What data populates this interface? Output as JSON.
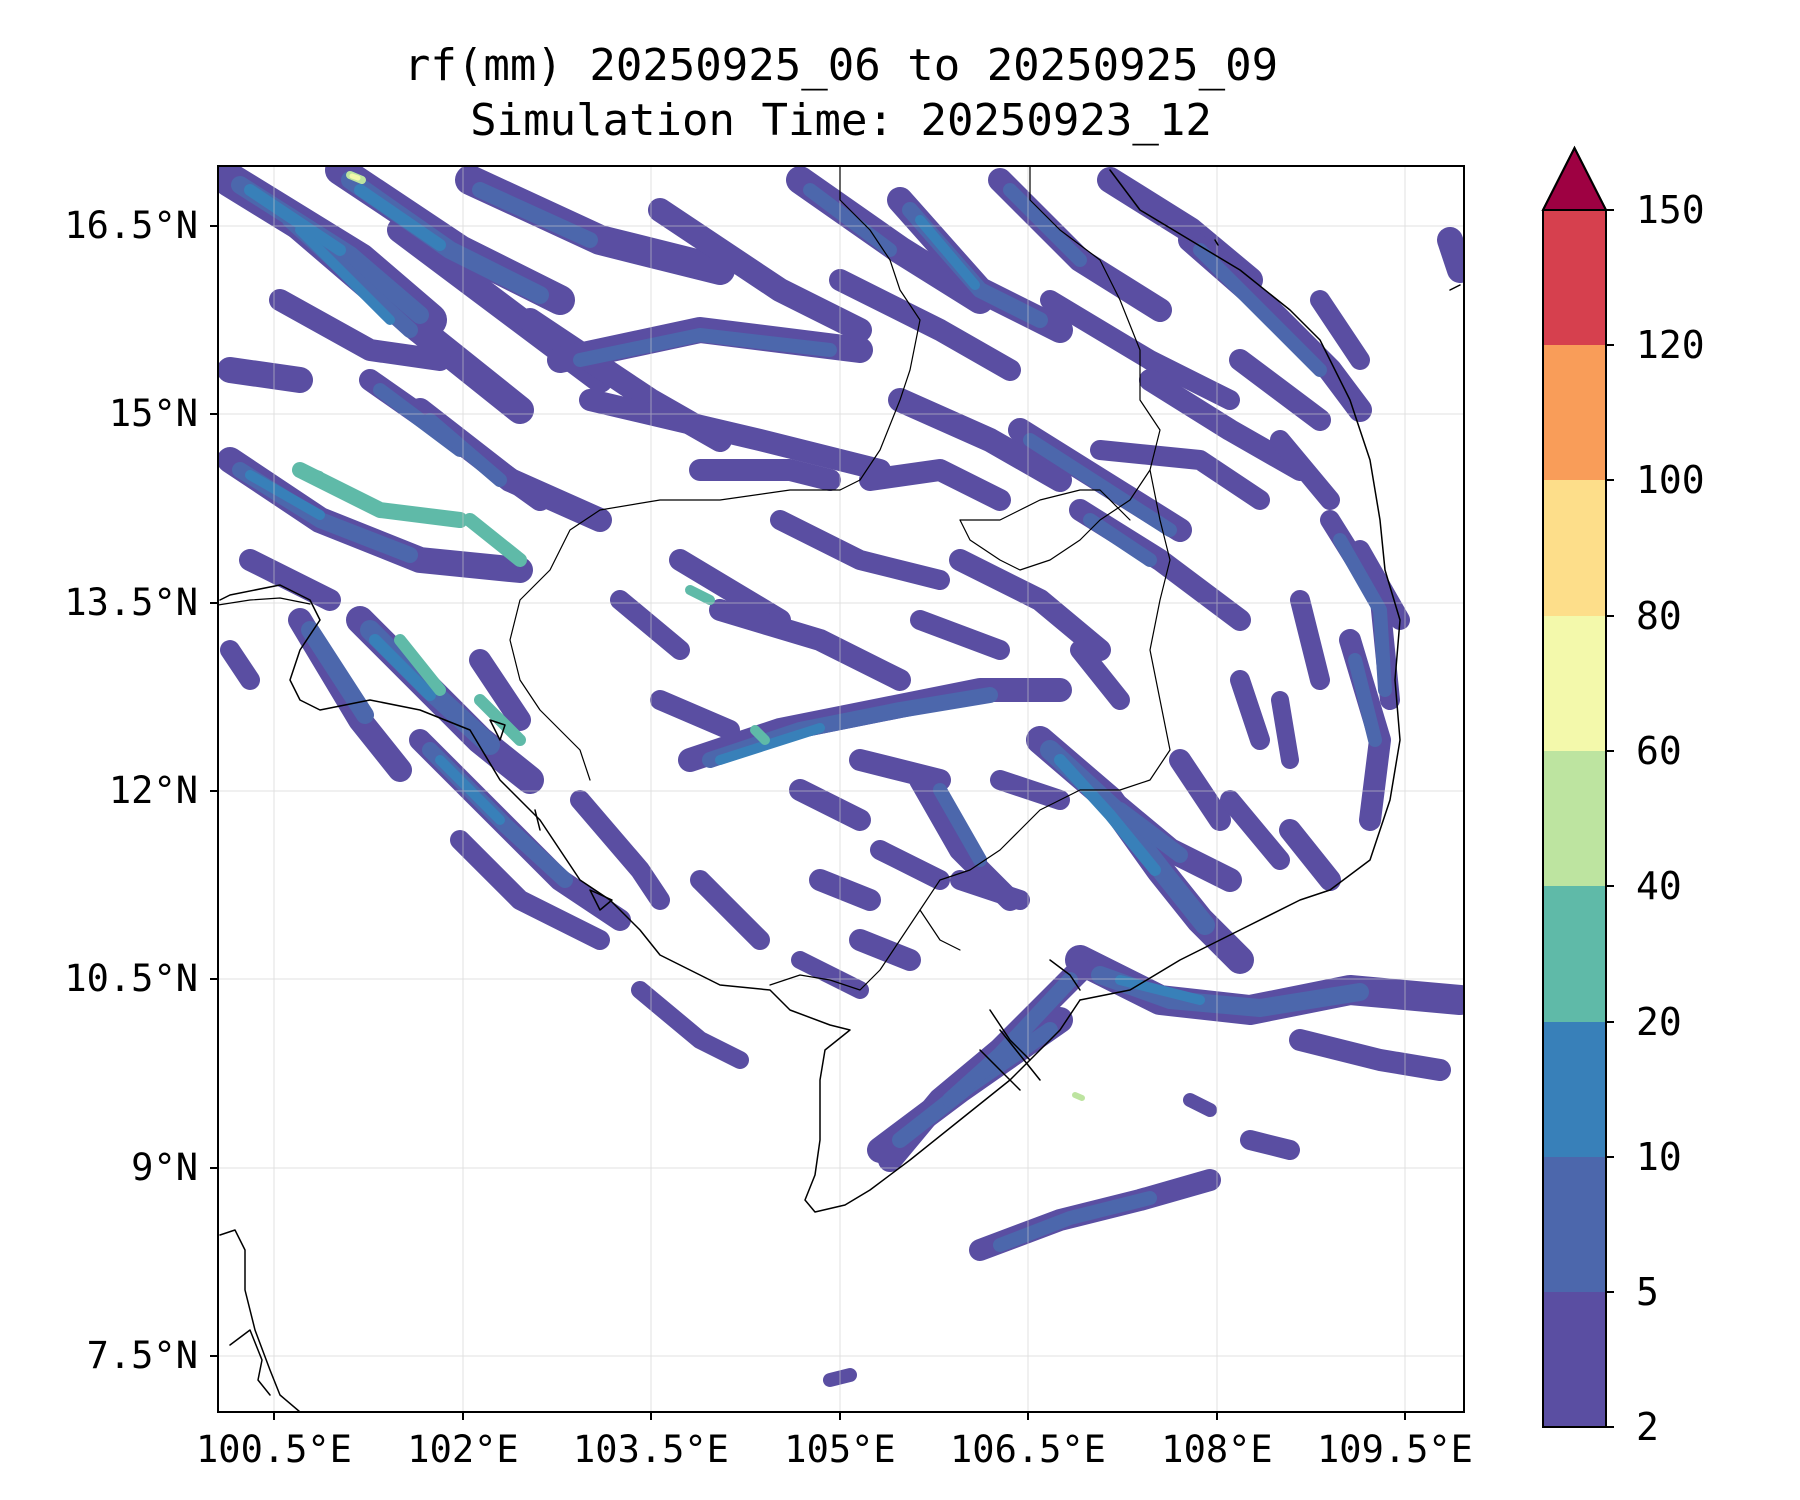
{
  "map": {
    "title_line1": "rf(mm) 20250925_06 to 20250925_09",
    "title_line2": "Simulation Time: 20250923_12",
    "x_ticks": [
      "100.5°E",
      "102°E",
      "103.5°E",
      "105°E",
      "106.5°E",
      "108°E",
      "109.5°E"
    ],
    "y_ticks": [
      "16.5°N",
      "15°N",
      "13.5°N",
      "12°N",
      "10.5°N",
      "9°N",
      "7.5°N"
    ],
    "lon_range": [
      100.5,
      110.4
    ],
    "lat_range": [
      6.9,
      16.8
    ],
    "colorbar": {
      "levels": [
        "2",
        "5",
        "10",
        "20",
        "40",
        "60",
        "80",
        "100",
        "120",
        "150"
      ],
      "colors": [
        "#5a4ea2",
        "#4c67ac",
        "#3880b9",
        "#5fbaa8",
        "#bde4a0",
        "#f3f9ab",
        "#fdde8a",
        "#f99d59",
        "#d6404e",
        "#9e0142"
      ],
      "extend": "max"
    }
  }
}
